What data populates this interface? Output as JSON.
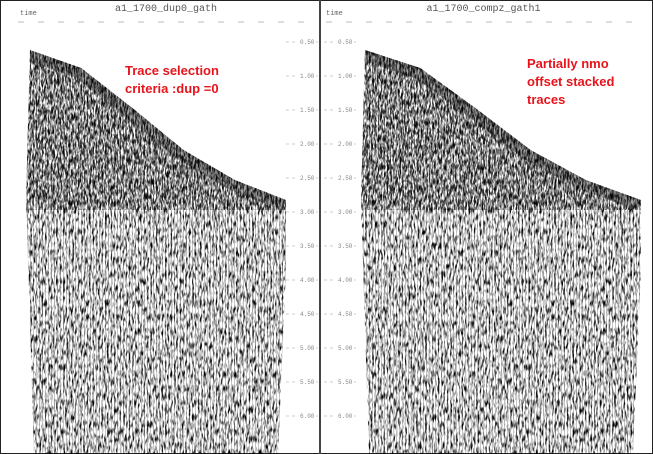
{
  "panels": [
    {
      "title": "a1_1700_dup0_gath",
      "header_label": "time",
      "annotation": [
        "Trace selection",
        "criteria :dup =0"
      ],
      "time_labels": [
        "0.50",
        "1.00",
        "1.50",
        "2.00",
        "2.50",
        "3.00",
        "3.50",
        "4.00",
        "4.50",
        "5.00",
        "5.50",
        "6.00"
      ]
    },
    {
      "title": "a1_1700_compz_gath1",
      "header_label": "time",
      "annotation": [
        "Partially nmo",
        "offset stacked",
        "traces"
      ],
      "time_labels": [
        "0.50",
        "1.00",
        "1.50",
        "2.00",
        "2.50",
        "3.00",
        "3.50",
        "4.00",
        "4.50",
        "5.00",
        "5.50",
        "6.00"
      ]
    }
  ]
}
